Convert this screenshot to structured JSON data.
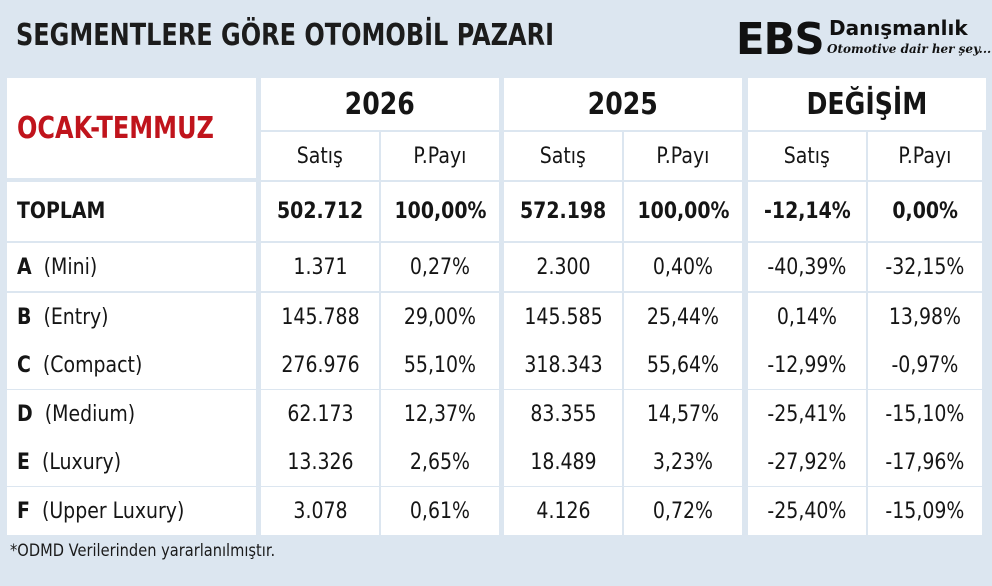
{
  "header": {
    "title": "SEGMENTLERE GÖRE OTOMOBİL PAZARI",
    "logo": {
      "mark": "EBS",
      "name": "Danışmanlık",
      "tagline": "Otomotive dair her şey..."
    }
  },
  "colors": {
    "background": "#dce6f0",
    "cell": "#ffffff",
    "period": "#c0141c",
    "text": "#151515"
  },
  "chart_data": {
    "type": "table",
    "title": "SEGMENTLERE GÖRE OTOMOBİL PAZARI",
    "period": "OCAK-TEMMUZ",
    "column_groups": [
      "2026",
      "2025",
      "DEĞİŞİM"
    ],
    "sub_columns": [
      "Satış",
      "P.Payı"
    ],
    "total": {
      "code": "TOPLAM",
      "name": "",
      "values": [
        "502.712",
        "100,00%",
        "572.198",
        "100,00%",
        "-12,14%",
        "0,00%"
      ]
    },
    "rows": [
      {
        "code": "A",
        "name": "(Mini)",
        "values": [
          "1.371",
          "0,27%",
          "2.300",
          "0,40%",
          "-40,39%",
          "-32,15%"
        ]
      },
      {
        "code": "B",
        "name": "(Entry)",
        "values": [
          "145.788",
          "29,00%",
          "145.585",
          "25,44%",
          "0,14%",
          "13,98%"
        ]
      },
      {
        "code": "C",
        "name": "(Compact)",
        "values": [
          "276.976",
          "55,10%",
          "318.343",
          "55,64%",
          "-12,99%",
          "-0,97%"
        ]
      },
      {
        "code": "D",
        "name": "(Medium)",
        "values": [
          "62.173",
          "12,37%",
          "83.355",
          "14,57%",
          "-25,41%",
          "-15,10%"
        ]
      },
      {
        "code": "E",
        "name": "(Luxury)",
        "values": [
          "13.326",
          "2,65%",
          "18.489",
          "3,23%",
          "-27,92%",
          "-17,96%"
        ]
      },
      {
        "code": "F",
        "name": "(Upper Luxury)",
        "values": [
          "3.078",
          "0,61%",
          "4.126",
          "0,72%",
          "-25,40%",
          "-15,09%"
        ]
      }
    ]
  },
  "footnote": "*ODMD Verilerinden yararlanılmıştır."
}
